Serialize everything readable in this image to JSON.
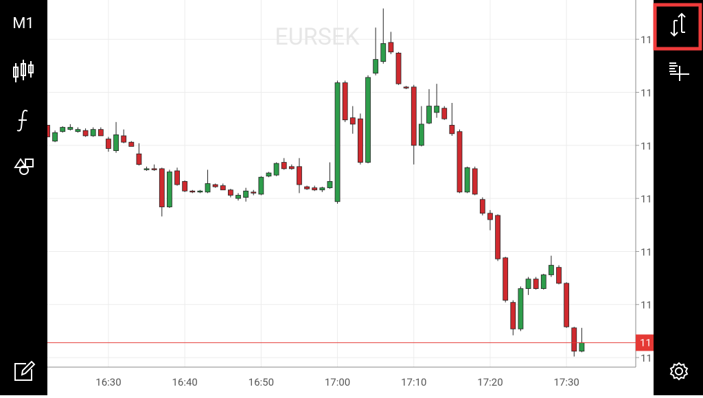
{
  "toolbar": {
    "timeframe": "M1"
  },
  "chart_data": {
    "type": "candlestick",
    "title": "EURSEK",
    "categories": [
      null,
      null,
      null,
      null,
      null,
      null,
      null,
      null,
      "16:30",
      null,
      null,
      null,
      null,
      null,
      null,
      null,
      null,
      null,
      "16:40",
      null,
      null,
      null,
      null,
      null,
      null,
      null,
      null,
      null,
      "16:50",
      null,
      null,
      null,
      null,
      null,
      null,
      null,
      null,
      null,
      "17:00",
      null,
      null,
      null,
      null,
      null,
      null,
      null,
      null,
      null,
      "17:10",
      null,
      null,
      null,
      null,
      null,
      null,
      null,
      null,
      null,
      "17:20",
      null,
      null,
      null,
      null,
      null,
      null,
      null,
      null,
      null,
      "17:30",
      null,
      null
    ],
    "open": [
      11.1219,
      11.1204,
      11.1213,
      11.1215,
      11.1213,
      11.1214,
      11.1209,
      11.1215,
      11.1206,
      11.1195,
      11.1209,
      11.1203,
      11.1192,
      11.1177,
      11.1178,
      11.1178,
      11.1142,
      11.1176,
      11.1166,
      11.1157,
      11.1156,
      11.1156,
      11.1163,
      11.1162,
      11.1158,
      11.115,
      11.1151,
      11.1156,
      11.1154,
      11.1171,
      11.1172,
      11.1184,
      11.118,
      11.118,
      11.1161,
      11.116,
      11.1158,
      11.116,
      11.1147,
      11.1259,
      11.1226,
      11.1225,
      11.1184,
      11.1268,
      11.1279,
      11.1297,
      11.1287,
      11.1255,
      11.1255,
      11.12,
      11.1221,
      11.1231,
      11.1235,
      11.1219,
      11.1213,
      11.1156,
      11.1178,
      11.1149,
      11.1136,
      11.1134,
      11.1094,
      11.1052,
      11.1027,
      11.1065,
      11.1074,
      11.1065,
      11.1078,
      11.1085,
      11.107,
      11.1028,
      11.1006
    ],
    "high": [
      11.1219,
      11.1214,
      11.1218,
      11.122,
      11.1217,
      11.1216,
      11.1217,
      11.1217,
      11.1208,
      11.1222,
      11.1215,
      11.1204,
      11.1202,
      11.118,
      11.1182,
      11.1179,
      11.1177,
      11.1179,
      11.1167,
      11.1158,
      11.1158,
      11.1177,
      11.1164,
      11.1164,
      11.1159,
      11.1155,
      11.116,
      11.1158,
      11.1171,
      11.1175,
      11.1184,
      11.1188,
      11.1182,
      11.1188,
      11.1162,
      11.1162,
      11.1161,
      11.1184,
      11.1261,
      11.1261,
      11.1237,
      11.123,
      11.1266,
      11.1311,
      11.1329,
      11.1307,
      11.1288,
      11.1256,
      11.1257,
      11.1237,
      11.1253,
      11.1258,
      11.1237,
      11.124,
      11.1215,
      11.118,
      11.118,
      11.1151,
      11.1139,
      11.1135,
      11.1095,
      11.1054,
      11.1067,
      11.1076,
      11.1076,
      11.1079,
      11.1096,
      11.1087,
      11.1071,
      11.1029,
      11.1028
    ],
    "low": [
      11.1208,
      11.1203,
      11.1212,
      11.1214,
      11.1212,
      11.1208,
      11.1208,
      11.1209,
      11.1194,
      11.1193,
      11.1202,
      11.1199,
      11.1181,
      11.1176,
      11.1176,
      11.1133,
      11.1141,
      11.1162,
      11.1156,
      11.1155,
      11.1155,
      11.1155,
      11.116,
      11.1158,
      11.1151,
      11.1148,
      11.1147,
      11.1153,
      11.1153,
      11.117,
      11.1171,
      11.1177,
      11.1177,
      11.1155,
      11.1158,
      11.1157,
      11.1156,
      11.1159,
      11.1145,
      11.1222,
      11.1211,
      11.1182,
      11.1183,
      11.1266,
      11.1277,
      11.1286,
      11.1257,
      11.1253,
      11.1182,
      11.1199,
      11.122,
      11.1226,
      11.1224,
      11.1209,
      11.1155,
      11.1155,
      11.1153,
      11.1134,
      11.112,
      11.1091,
      11.1052,
      11.1021,
      11.1025,
      11.1059,
      11.1064,
      11.1064,
      11.1076,
      11.1069,
      11.1028,
      11.1001,
      11.1005
    ],
    "close": [
      11.1208,
      11.1212,
      11.1217,
      11.1217,
      11.1215,
      11.1209,
      11.1215,
      11.1209,
      11.1197,
      11.121,
      11.1203,
      11.1199,
      11.1182,
      11.1178,
      11.1177,
      11.1142,
      11.1175,
      11.1163,
      11.1157,
      11.1156,
      11.1157,
      11.1164,
      11.1161,
      11.1158,
      11.1153,
      11.1153,
      11.1157,
      11.1155,
      11.117,
      11.1174,
      11.1183,
      11.1178,
      11.1178,
      11.1163,
      11.1159,
      11.1158,
      11.116,
      11.1166,
      11.1259,
      11.1224,
      11.122,
      11.1184,
      11.1264,
      11.1281,
      11.1296,
      11.1288,
      11.1258,
      11.1254,
      11.12,
      11.122,
      11.1237,
      11.1237,
      11.1225,
      11.1211,
      11.1156,
      11.1179,
      11.1154,
      11.1136,
      11.113,
      11.1093,
      11.1054,
      11.1027,
      11.1065,
      11.1074,
      11.1065,
      11.1078,
      11.1087,
      11.107,
      11.1029,
      11.1006,
      11.1014
    ],
    "up_color": "#2e9d4b",
    "down_color": "#cf2a2f",
    "ylim": [
      11.0991,
      11.1337
    ],
    "yticks": [
      {
        "value": 11.1,
        "label": "11"
      },
      {
        "value": 11.105,
        "label": "11"
      },
      {
        "value": 11.11,
        "label": "11"
      },
      {
        "value": 11.115,
        "label": "11"
      },
      {
        "value": 11.12,
        "label": "11"
      },
      {
        "value": 11.125,
        "label": "11"
      },
      {
        "value": 11.13,
        "label": "11"
      }
    ],
    "last_price": {
      "value": 11.1014,
      "label": "11",
      "color": "#e53935"
    },
    "grid": true
  }
}
